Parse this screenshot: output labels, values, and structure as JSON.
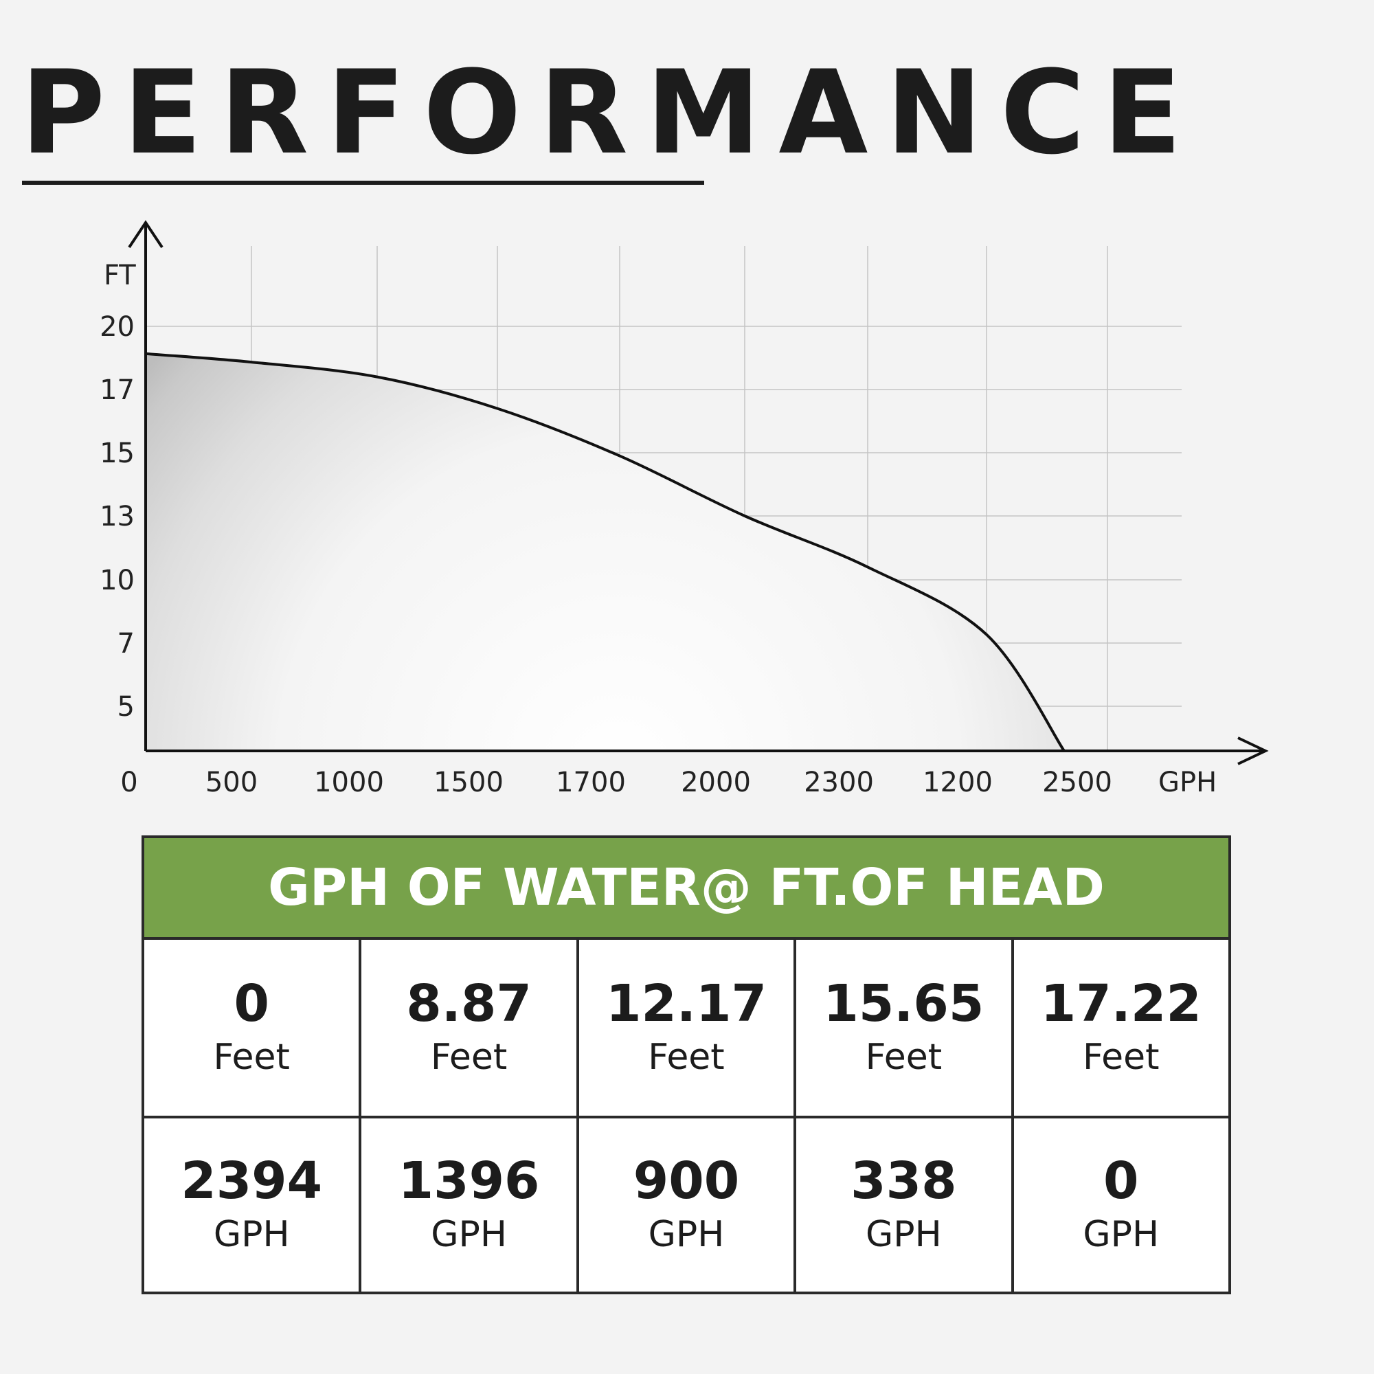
{
  "header": {
    "title": "PERFORMANCE"
  },
  "chart_data": {
    "type": "line",
    "ylabel": "FT",
    "xlabel": "GPH",
    "x_tick_labels": [
      "0",
      "500",
      "1000",
      "1500",
      "1700",
      "2000",
      "2300",
      "1200",
      "2500"
    ],
    "y_tick_labels": [
      "5",
      "7",
      "10",
      "13",
      "15",
      "17",
      "20"
    ],
    "grid": true,
    "fill_under_curve": true,
    "series": [
      {
        "x_position": [
          0,
          1,
          2,
          3,
          4,
          5,
          6,
          7,
          7.64
        ],
        "y": [
          18.7,
          18.3,
          17.6,
          16.4,
          14.9,
          13.0,
          10.6,
          7.4,
          3.6
        ]
      }
    ]
  },
  "table": {
    "header": "GPH OF WATER@ FT.OF HEAD",
    "feet_row": [
      {
        "value": "0",
        "unit": "Feet"
      },
      {
        "value": "8.87",
        "unit": "Feet"
      },
      {
        "value": "12.17",
        "unit": "Feet"
      },
      {
        "value": "15.65",
        "unit": "Feet"
      },
      {
        "value": "17.22",
        "unit": "Feet"
      }
    ],
    "gph_row": [
      {
        "value": "2394",
        "unit": "GPH"
      },
      {
        "value": "1396",
        "unit": "GPH"
      },
      {
        "value": "900",
        "unit": "GPH"
      },
      {
        "value": "338",
        "unit": "GPH"
      },
      {
        "value": "0",
        "unit": "GPH"
      }
    ]
  }
}
